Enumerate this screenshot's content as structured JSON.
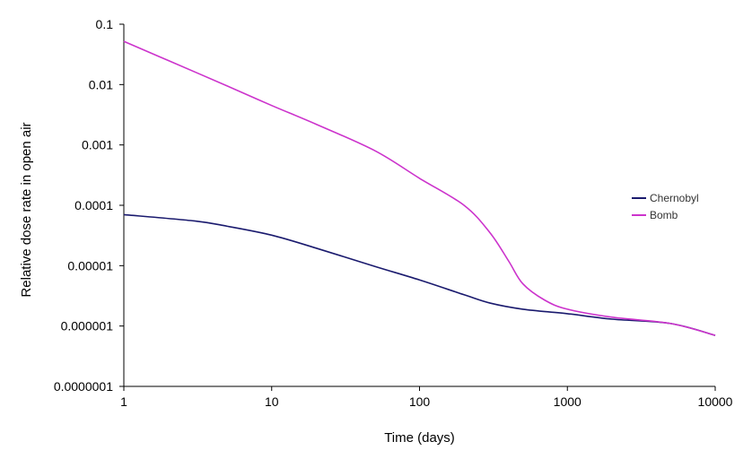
{
  "chart_data": {
    "type": "line",
    "title": "",
    "xlabel": "Time (days)",
    "ylabel": "Relative dose rate in open air",
    "x_scale": "log",
    "y_scale": "log",
    "xlim": [
      1,
      10000
    ],
    "ylim": [
      1e-07,
      0.1
    ],
    "x_ticks": [
      1,
      10,
      100,
      1000,
      10000
    ],
    "x_tick_labels": [
      "1",
      "10",
      "100",
      "1000",
      "10000"
    ],
    "y_ticks": [
      1e-07,
      1e-06,
      1e-05,
      0.0001,
      0.001,
      0.01,
      0.1
    ],
    "y_tick_labels": [
      "0.0000001",
      "0.000001",
      "0.00001",
      "0.0001",
      "0.001",
      "0.01",
      "0.1"
    ],
    "grid": false,
    "legend_position": "right",
    "series": [
      {
        "name": "Chernobyl",
        "color": "#1a1a6e",
        "points": [
          [
            1,
            7e-05
          ],
          [
            3,
            5.5e-05
          ],
          [
            5,
            4.5e-05
          ],
          [
            10,
            3.2e-05
          ],
          [
            20,
            1.95e-05
          ],
          [
            50,
            9.7e-06
          ],
          [
            100,
            5.8e-06
          ],
          [
            200,
            3.3e-06
          ],
          [
            300,
            2.4e-06
          ],
          [
            500,
            1.9e-06
          ],
          [
            1000,
            1.6e-06
          ],
          [
            2000,
            1.3e-06
          ],
          [
            5000,
            1.1e-06
          ],
          [
            10000,
            7e-07
          ]
        ]
      },
      {
        "name": "Bomb",
        "color": "#cc33cc",
        "points": [
          [
            1,
            0.052
          ],
          [
            2,
            0.025
          ],
          [
            5,
            0.0095
          ],
          [
            10,
            0.0045
          ],
          [
            20,
            0.0022
          ],
          [
            50,
            0.0008
          ],
          [
            100,
            0.00028
          ],
          [
            200,
            0.0001
          ],
          [
            300,
            3.5e-05
          ],
          [
            400,
            1.2e-05
          ],
          [
            500,
            5e-06
          ],
          [
            700,
            2.7e-06
          ],
          [
            1000,
            1.9e-06
          ],
          [
            2000,
            1.4e-06
          ],
          [
            5000,
            1.1e-06
          ],
          [
            10000,
            7e-07
          ]
        ]
      }
    ]
  }
}
